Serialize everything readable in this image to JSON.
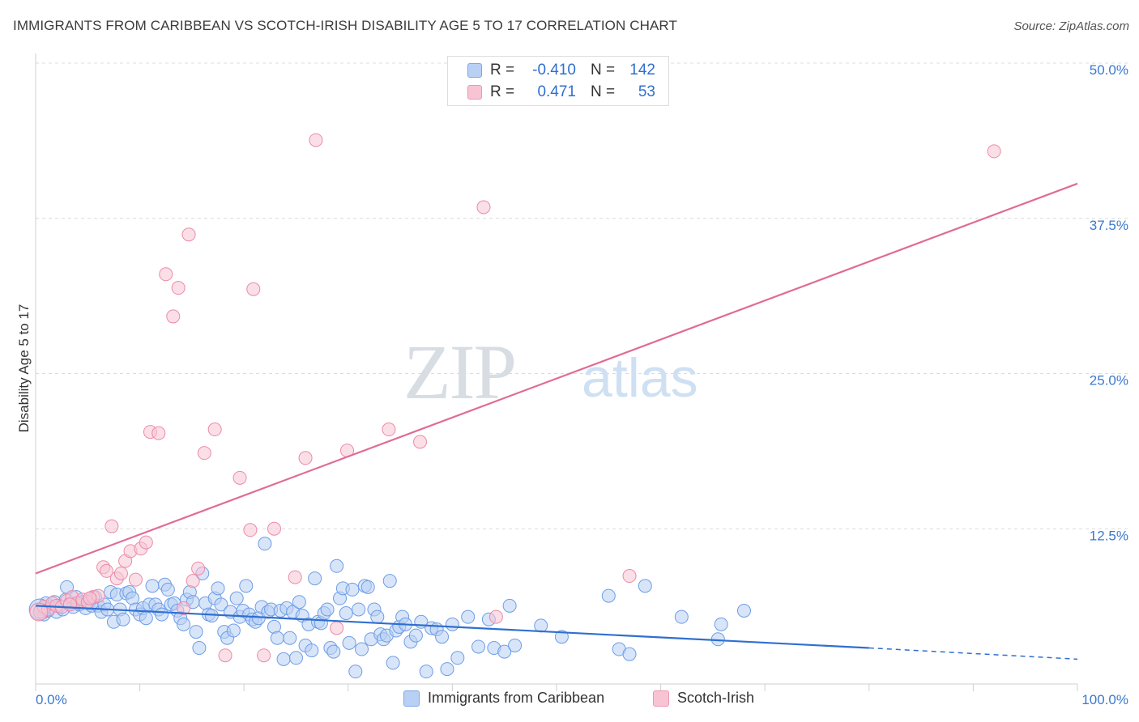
{
  "title": "IMMIGRANTS FROM CARIBBEAN VS SCOTCH-IRISH DISABILITY AGE 5 TO 17 CORRELATION CHART",
  "source": "Source: ZipAtlas.com",
  "watermark": {
    "zip": "ZIP",
    "atlas": "atlas"
  },
  "stats": {
    "rows": [
      {
        "r_label": "R =",
        "r_value": "-0.410",
        "n_label": "N =",
        "n_value": "142",
        "fill": "#b8d0f4",
        "stroke": "#7fa7e8"
      },
      {
        "r_label": "R =",
        "r_value": "0.471",
        "n_label": "N =",
        "n_value": "53",
        "fill": "#f8c4d4",
        "stroke": "#ee97b2"
      }
    ]
  },
  "legend": [
    {
      "label": "Immigrants from Caribbean",
      "fill": "#b8d0f4",
      "stroke": "#7fa7e8"
    },
    {
      "label": "Scotch-Irish",
      "fill": "#f8c4d4",
      "stroke": "#ee97b2"
    }
  ],
  "chart_data": {
    "type": "scatter",
    "title": "IMMIGRANTS FROM CARIBBEAN VS SCOTCH-IRISH DISABILITY AGE 5 TO 17 CORRELATION CHART",
    "xlabel": "",
    "ylabel": "Disability Age 5 to 17",
    "xlim": [
      0,
      100
    ],
    "ylim": [
      0,
      50
    ],
    "x_tick_labels": [
      {
        "value": 0,
        "label": "0.0%"
      },
      {
        "value": 100,
        "label": "100.0%"
      }
    ],
    "y_tick_labels": [
      {
        "value": 12.5,
        "label": "12.5%"
      },
      {
        "value": 25,
        "label": "25.0%"
      },
      {
        "value": 37.5,
        "label": "37.5%"
      },
      {
        "value": 50,
        "label": "50.0%"
      }
    ],
    "grid": true,
    "legend_position": "bottom-center",
    "series": [
      {
        "name": "Immigrants from Caribbean",
        "color": "#6d9de6",
        "fill": "#b8d0f4",
        "trend": {
          "x": [
            0,
            80
          ],
          "y": [
            6.3,
            2.9
          ],
          "dashed_to": [
            100,
            2.0
          ],
          "color": "#2f6fcf"
        },
        "points": [
          [
            0.5,
            6.0
          ],
          [
            0.8,
            5.6
          ],
          [
            1.0,
            6.5
          ],
          [
            1.2,
            5.9
          ],
          [
            1.5,
            6.2
          ],
          [
            1.8,
            6.6
          ],
          [
            2.0,
            5.8
          ],
          [
            2.3,
            6.3
          ],
          [
            2.6,
            6.0
          ],
          [
            2.9,
            6.8
          ],
          [
            3.0,
            7.8
          ],
          [
            3.3,
            6.5
          ],
          [
            3.6,
            6.2
          ],
          [
            3.9,
            7.0
          ],
          [
            4.2,
            6.4
          ],
          [
            4.5,
            6.6
          ],
          [
            4.8,
            6.1
          ],
          [
            5.1,
            6.5
          ],
          [
            5.4,
            6.3
          ],
          [
            5.7,
            7.0
          ],
          [
            6.0,
            6.3
          ],
          [
            6.3,
            5.8
          ],
          [
            6.6,
            6.4
          ],
          [
            6.9,
            6.0
          ],
          [
            7.2,
            7.4
          ],
          [
            7.5,
            5.0
          ],
          [
            7.8,
            7.2
          ],
          [
            8.1,
            6.0
          ],
          [
            8.4,
            5.2
          ],
          [
            8.7,
            7.3
          ],
          [
            9.0,
            7.4
          ],
          [
            9.3,
            6.9
          ],
          [
            9.6,
            6.0
          ],
          [
            10.0,
            5.6
          ],
          [
            10.3,
            6.1
          ],
          [
            10.6,
            5.3
          ],
          [
            10.9,
            6.4
          ],
          [
            11.2,
            7.9
          ],
          [
            11.5,
            6.4
          ],
          [
            11.8,
            6.0
          ],
          [
            12.1,
            5.6
          ],
          [
            12.4,
            8.0
          ],
          [
            12.7,
            7.6
          ],
          [
            13.0,
            6.4
          ],
          [
            13.3,
            6.5
          ],
          [
            13.6,
            5.9
          ],
          [
            13.9,
            5.3
          ],
          [
            14.2,
            4.8
          ],
          [
            14.5,
            6.8
          ],
          [
            14.8,
            7.4
          ],
          [
            15.1,
            6.6
          ],
          [
            15.4,
            4.2
          ],
          [
            15.7,
            2.9
          ],
          [
            16.0,
            8.9
          ],
          [
            16.3,
            6.5
          ],
          [
            16.6,
            5.6
          ],
          [
            16.9,
            5.5
          ],
          [
            17.2,
            6.9
          ],
          [
            17.5,
            7.7
          ],
          [
            17.8,
            6.4
          ],
          [
            18.1,
            4.2
          ],
          [
            18.4,
            3.7
          ],
          [
            18.7,
            5.8
          ],
          [
            19.0,
            4.3
          ],
          [
            19.3,
            6.9
          ],
          [
            19.6,
            5.4
          ],
          [
            19.9,
            5.9
          ],
          [
            20.2,
            7.9
          ],
          [
            20.5,
            5.6
          ],
          [
            20.8,
            5.2
          ],
          [
            21.1,
            5.0
          ],
          [
            21.4,
            5.3
          ],
          [
            21.7,
            6.2
          ],
          [
            22.0,
            11.3
          ],
          [
            22.3,
            5.8
          ],
          [
            22.6,
            6.0
          ],
          [
            22.9,
            4.6
          ],
          [
            23.2,
            3.7
          ],
          [
            23.5,
            5.9
          ],
          [
            23.8,
            2.0
          ],
          [
            24.1,
            6.1
          ],
          [
            24.4,
            3.7
          ],
          [
            24.7,
            5.8
          ],
          [
            25.0,
            2.1
          ],
          [
            25.3,
            6.6
          ],
          [
            25.6,
            5.5
          ],
          [
            25.9,
            3.1
          ],
          [
            26.2,
            4.8
          ],
          [
            26.5,
            2.7
          ],
          [
            26.8,
            8.5
          ],
          [
            27.1,
            5.0
          ],
          [
            27.4,
            4.9
          ],
          [
            27.7,
            5.7
          ],
          [
            28.0,
            6.0
          ],
          [
            28.3,
            2.9
          ],
          [
            28.6,
            2.6
          ],
          [
            28.9,
            9.5
          ],
          [
            29.2,
            6.9
          ],
          [
            29.5,
            7.7
          ],
          [
            29.8,
            5.7
          ],
          [
            30.1,
            3.3
          ],
          [
            30.4,
            7.6
          ],
          [
            30.7,
            1.0
          ],
          [
            31.0,
            6.0
          ],
          [
            31.3,
            2.8
          ],
          [
            31.6,
            7.9
          ],
          [
            31.9,
            7.8
          ],
          [
            32.2,
            3.6
          ],
          [
            32.5,
            6.0
          ],
          [
            32.8,
            5.4
          ],
          [
            33.1,
            4.0
          ],
          [
            33.4,
            3.6
          ],
          [
            33.7,
            3.9
          ],
          [
            34.0,
            8.3
          ],
          [
            34.3,
            1.7
          ],
          [
            34.6,
            4.3
          ],
          [
            34.9,
            4.6
          ],
          [
            35.2,
            5.4
          ],
          [
            35.5,
            4.8
          ],
          [
            36.0,
            3.4
          ],
          [
            36.5,
            3.9
          ],
          [
            37.0,
            5.0
          ],
          [
            37.5,
            1.0
          ],
          [
            38.0,
            4.5
          ],
          [
            38.5,
            4.4
          ],
          [
            39.0,
            3.8
          ],
          [
            39.5,
            1.2
          ],
          [
            40.0,
            4.8
          ],
          [
            40.5,
            2.1
          ],
          [
            41.5,
            5.4
          ],
          [
            42.5,
            3.0
          ],
          [
            43.5,
            5.2
          ],
          [
            44.0,
            2.9
          ],
          [
            45.0,
            2.6
          ],
          [
            45.5,
            6.3
          ],
          [
            46.0,
            3.1
          ],
          [
            48.5,
            4.7
          ],
          [
            50.5,
            3.8
          ],
          [
            55.0,
            7.1
          ],
          [
            56.0,
            2.8
          ],
          [
            57.0,
            2.4
          ],
          [
            58.5,
            7.9
          ],
          [
            62.0,
            5.4
          ],
          [
            65.5,
            3.6
          ],
          [
            65.8,
            4.8
          ],
          [
            68.0,
            5.9
          ]
        ]
      },
      {
        "name": "Scotch-Irish",
        "color": "#ec8aaa",
        "fill": "#f8c4d4",
        "trend": {
          "x": [
            0,
            100
          ],
          "y": [
            8.9,
            40.3
          ],
          "color": "#e06b96"
        },
        "points": [
          [
            0.4,
            5.8
          ],
          [
            0.8,
            6.2
          ],
          [
            1.2,
            6.0
          ],
          [
            1.6,
            6.5
          ],
          [
            2.0,
            6.3
          ],
          [
            2.5,
            6.2
          ],
          [
            3.0,
            6.7
          ],
          [
            3.5,
            7.0
          ],
          [
            4.0,
            6.5
          ],
          [
            4.5,
            6.8
          ],
          [
            5.0,
            6.6
          ],
          [
            5.5,
            7.0
          ],
          [
            6.0,
            7.1
          ],
          [
            6.5,
            9.4
          ],
          [
            6.8,
            9.1
          ],
          [
            7.3,
            12.7
          ],
          [
            7.8,
            8.5
          ],
          [
            8.2,
            8.9
          ],
          [
            8.6,
            9.9
          ],
          [
            9.1,
            10.7
          ],
          [
            9.6,
            8.4
          ],
          [
            10.1,
            10.9
          ],
          [
            10.6,
            11.4
          ],
          [
            11.0,
            20.3
          ],
          [
            11.8,
            20.2
          ],
          [
            12.5,
            33.0
          ],
          [
            13.2,
            29.6
          ],
          [
            13.7,
            31.9
          ],
          [
            14.2,
            6.1
          ],
          [
            14.7,
            36.2
          ],
          [
            15.1,
            8.3
          ],
          [
            15.6,
            9.3
          ],
          [
            16.2,
            18.6
          ],
          [
            17.2,
            20.5
          ],
          [
            18.2,
            2.3
          ],
          [
            19.6,
            16.6
          ],
          [
            20.6,
            12.4
          ],
          [
            20.9,
            31.8
          ],
          [
            21.9,
            2.3
          ],
          [
            22.9,
            12.5
          ],
          [
            24.9,
            8.6
          ],
          [
            25.9,
            18.2
          ],
          [
            26.9,
            43.8
          ],
          [
            28.9,
            4.5
          ],
          [
            29.9,
            18.8
          ],
          [
            33.9,
            20.5
          ],
          [
            36.9,
            19.5
          ],
          [
            43.0,
            38.4
          ],
          [
            44.2,
            5.4
          ],
          [
            57.0,
            8.7
          ],
          [
            92.0,
            42.9
          ],
          [
            3.3,
            6.4
          ],
          [
            5.2,
            6.9
          ]
        ]
      }
    ]
  }
}
